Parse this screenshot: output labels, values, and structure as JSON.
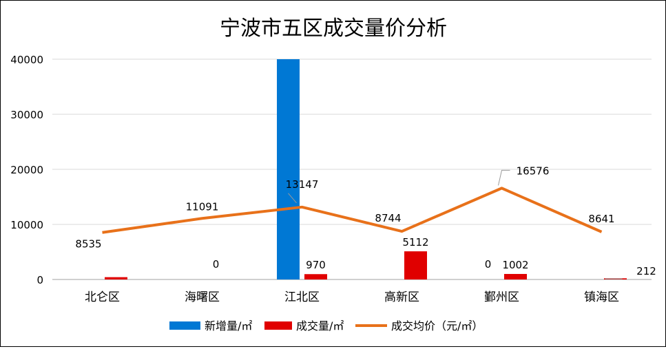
{
  "chart_data": {
    "type": "bar",
    "title": "宁波市五区成交量价分析",
    "categories": [
      "北仑区",
      "海曙区",
      "江北区",
      "高新区",
      "鄞州区",
      "镇海区"
    ],
    "ylim": [
      0,
      40000
    ],
    "yticks": [
      "0",
      "10000",
      "20000",
      "30000",
      "40000"
    ],
    "grid": true,
    "legend_position": "bottom",
    "series": [
      {
        "name": "新增量/㎡",
        "type": "bar",
        "color": "#0078D4",
        "values": [
          0,
          0,
          40000,
          0,
          0,
          0
        ],
        "labels": [
          "",
          "",
          "",
          "",
          "0",
          ""
        ]
      },
      {
        "name": "成交量/㎡",
        "type": "bar",
        "color": "#E00000",
        "values": [
          420,
          0,
          970,
          5112,
          1002,
          212
        ],
        "labels": [
          "",
          "0",
          "970",
          "5112",
          "1002",
          "212"
        ]
      },
      {
        "name": "成交均价（元/㎡）",
        "type": "line",
        "color": "#E8711A",
        "values": [
          8535,
          11091,
          13147,
          8744,
          16576,
          8641
        ],
        "labels": [
          "8535",
          "11091",
          "13147",
          "8744",
          "16576",
          "8641"
        ]
      }
    ]
  }
}
